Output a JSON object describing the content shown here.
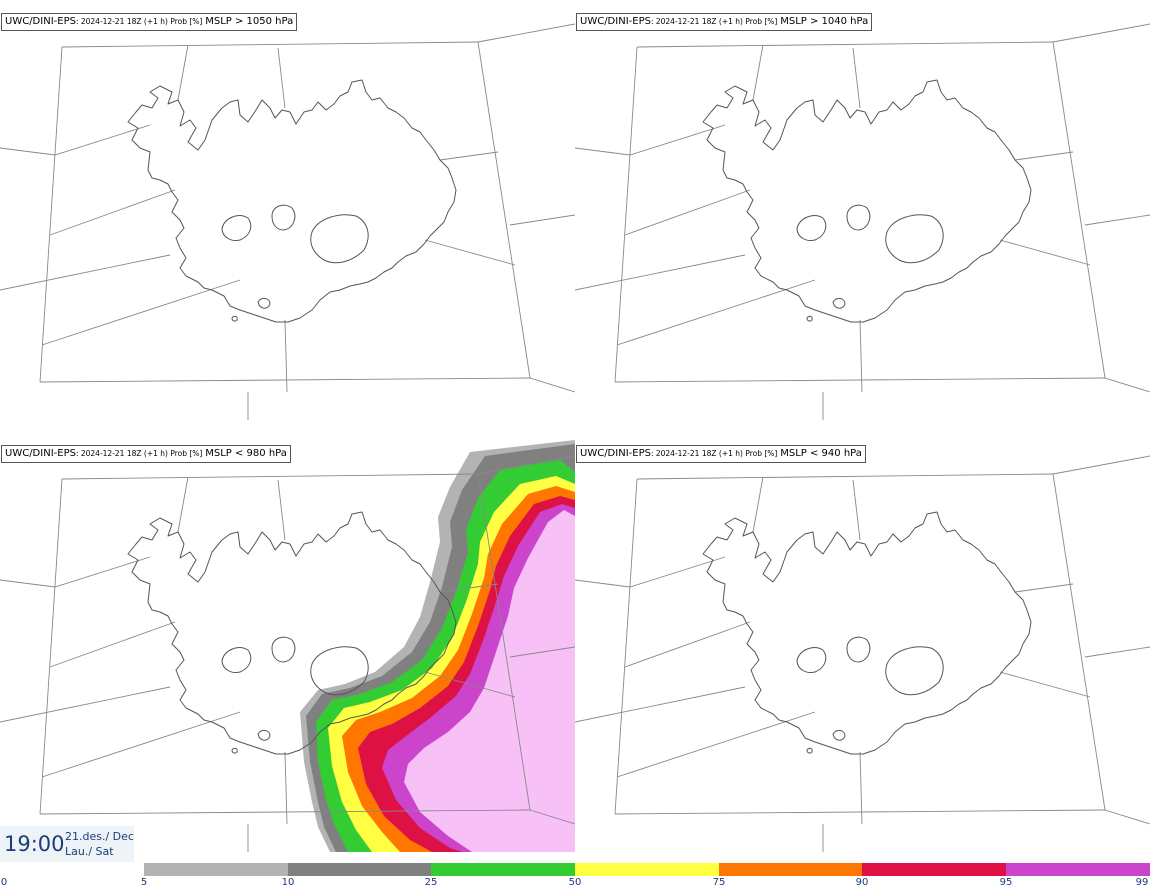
{
  "panels": [
    {
      "source": "UWC/DINI-EPS",
      "run": ": 2024-12-21 18Z (+1 h) Prob [%]",
      "variable": "MSLP > 1050 hPa",
      "has_field": false
    },
    {
      "source": "UWC/DINI-EPS",
      "run": ": 2024-12-21 18Z (+1 h) Prob [%]",
      "variable": "MSLP > 1040 hPa",
      "has_field": false
    },
    {
      "source": "UWC/DINI-EPS",
      "run": ": 2024-12-21 18Z (+1 h) Prob [%]",
      "variable": "MSLP < 980 hPa",
      "has_field": true
    },
    {
      "source": "UWC/DINI-EPS",
      "run": ": 2024-12-21 18Z (+1 h) Prob [%]",
      "variable": "MSLP < 940 hPa",
      "has_field": false
    }
  ],
  "valid_time": {
    "time": "19:00",
    "date_line1": "21.des./ Dec",
    "date_line2": "Lau./ Sat"
  },
  "legend": {
    "ticks": [
      "0",
      "5",
      "10",
      "25",
      "50",
      "75",
      "90",
      "95",
      "99"
    ],
    "bins": [
      {
        "from": 5,
        "to": 10,
        "color": "#b3b3b3"
      },
      {
        "from": 10,
        "to": 25,
        "color": "#808080"
      },
      {
        "from": 25,
        "to": 50,
        "color": "#33cc33"
      },
      {
        "from": 50,
        "to": 75,
        "color": "#ffff44"
      },
      {
        "from": 75,
        "to": 90,
        "color": "#ff7700"
      },
      {
        "from": 90,
        "to": 95,
        "color": "#dd1144"
      },
      {
        "from": 95,
        "to": 99,
        "color": "#cc44cc"
      },
      {
        "from": 99,
        "to": 100,
        "color": "#f7c1f7"
      }
    ]
  },
  "colors": {
    "coast": "#555555",
    "grid": "#888888",
    "label": "#1a3d7a"
  }
}
